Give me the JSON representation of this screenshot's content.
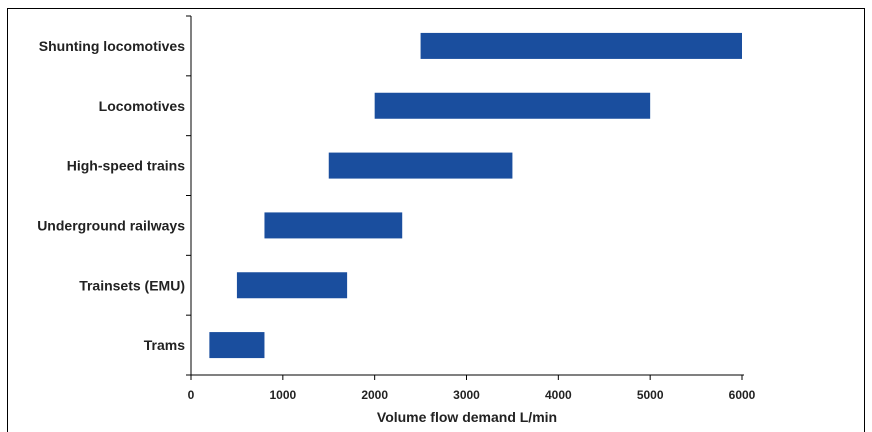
{
  "chart_data": {
    "type": "bar",
    "orientation": "horizontal",
    "categories": [
      "Shunting locomotives",
      "Locomotives",
      "High-speed trains",
      "Underground railways",
      "Trainsets (EMU)",
      "Trams"
    ],
    "ranges": [
      [
        2500,
        6000
      ],
      [
        2000,
        5000
      ],
      [
        1500,
        3500
      ],
      [
        800,
        2300
      ],
      [
        500,
        1700
      ],
      [
        200,
        800
      ]
    ],
    "xlabel": "Volume flow demand L/min",
    "xlim": [
      0,
      6000
    ],
    "xticks": [
      "0",
      "1000",
      "2000",
      "3000",
      "4000",
      "5000",
      "6000"
    ],
    "grid": false,
    "legend": "none",
    "bar_color": "#1a4e9e"
  }
}
